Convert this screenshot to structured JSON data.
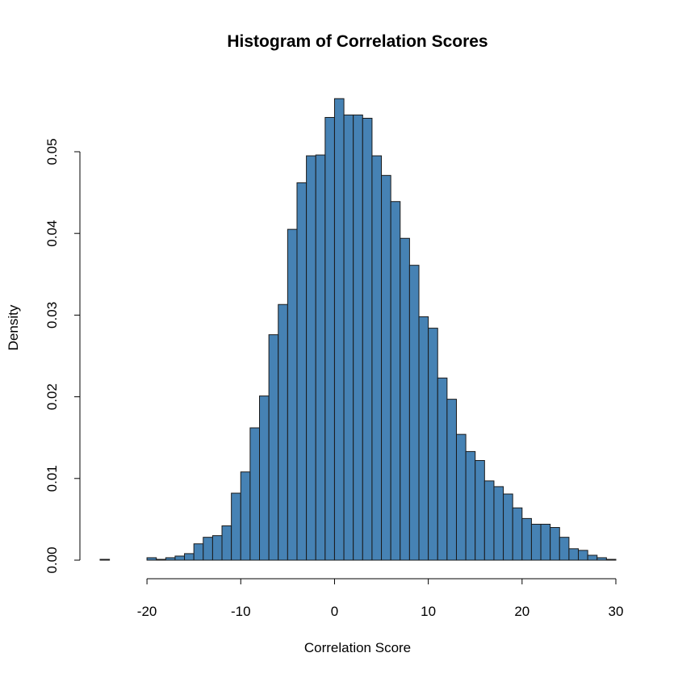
{
  "chart_data": {
    "type": "bar",
    "title": "Histogram of Correlation Scores",
    "xlabel": "Correlation Score",
    "ylabel": "Density",
    "xlim": [
      -25,
      30
    ],
    "ylim": [
      0,
      0.055
    ],
    "x_ticks": [
      -20,
      -10,
      0,
      10,
      20,
      30
    ],
    "x_tick_labels": [
      "-20",
      "-10",
      "0",
      "10",
      "20",
      "30"
    ],
    "y_ticks": [
      0,
      0.01,
      0.02,
      0.03,
      0.04,
      0.05
    ],
    "y_tick_labels": [
      "0.00",
      "0.01",
      "0.02",
      "0.03",
      "0.04",
      "0.05"
    ],
    "bin_width": 1,
    "bin_edges_start": -25,
    "values": [
      0.0001,
      0.0,
      0.0,
      0.0,
      0.0,
      0.0003,
      0.0001,
      0.0003,
      0.0005,
      0.0008,
      0.002,
      0.0028,
      0.003,
      0.0042,
      0.0082,
      0.0108,
      0.0162,
      0.0201,
      0.0276,
      0.0313,
      0.0405,
      0.0462,
      0.0495,
      0.0496,
      0.0542,
      0.0565,
      0.0545,
      0.0545,
      0.0541,
      0.0495,
      0.0471,
      0.0439,
      0.0394,
      0.0361,
      0.0298,
      0.0284,
      0.0223,
      0.0197,
      0.0154,
      0.0133,
      0.0122,
      0.0097,
      0.009,
      0.0081,
      0.0064,
      0.0051,
      0.0044,
      0.0044,
      0.004,
      0.0028,
      0.0014,
      0.0012,
      0.0006,
      0.0003,
      0.0001
    ],
    "bar_color": "#4682B4",
    "bar_border_color": "#1a1a1a",
    "grid": false
  }
}
